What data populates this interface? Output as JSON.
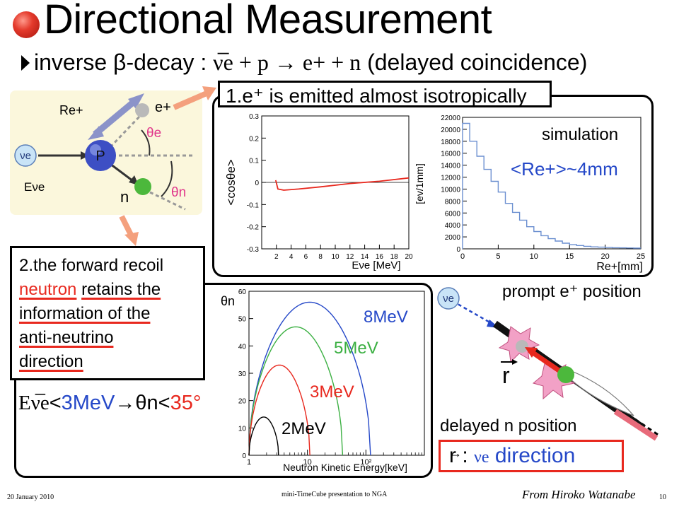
{
  "slide": {
    "title": "Directional Measurement",
    "subtitle_prefix": "inverse β-decay :",
    "reaction": "ν̅e + p → e+ + n",
    "subtitle_suffix": "(delayed coincidence)",
    "ball_color": "#d93a2b"
  },
  "diagram": {
    "labels": {
      "r": "Re+",
      "p": "P",
      "e": "e+",
      "theta_e": "θe",
      "theta_n": "θn",
      "n": "n",
      "nu": "νe",
      "energy": "Eνe"
    },
    "colors": {
      "bg": "#fbf7dc",
      "proton": "#3d4fc4",
      "electron": "#b9b9b9",
      "neutron": "#4cb83c",
      "pink": "#e0358a"
    }
  },
  "box1": {
    "label": "1.e⁺ is emitted almost isotropically"
  },
  "box2": {
    "line1": "2.the forward recoil",
    "line2_red": "neutron",
    "line2_rest": "retains the",
    "line3": "information of the",
    "line4": "anti-neutrino",
    "line5": "direction"
  },
  "condition": {
    "energy": "Eν̅e",
    "lt1": "<",
    "val1": "3MeV",
    "arrow": "→",
    "theta": "θn",
    "lt2": "<",
    "val2": "35°"
  },
  "plot_cos": {
    "ylabel": "<cosθe>",
    "xlabel": "Eνe [MeV]",
    "yticks": [
      "0.3",
      "0.2",
      "0.1",
      "0",
      "-0.1",
      "-0.2",
      "-0.3"
    ],
    "xticks": [
      "2",
      "4",
      "6",
      "8",
      "10",
      "12",
      "14",
      "16",
      "18",
      "20"
    ]
  },
  "plot_hist": {
    "ylabel": "[ev/1mm]",
    "xlabel": "Re+[mm]",
    "annotation": "simulation",
    "mean": "<Re+>~4mm",
    "yticks": [
      "22000",
      "20000",
      "18000",
      "16000",
      "14000",
      "12000",
      "10000",
      "8000",
      "6000",
      "4000",
      "2000",
      "0"
    ],
    "xticks": [
      "0",
      "5",
      "10",
      "15",
      "20",
      "25"
    ]
  },
  "plot_theta": {
    "ylabel": "θn",
    "xlabel": "Neutron Kinetic Energy[keV]",
    "yticks": [
      "60",
      "50",
      "40",
      "30",
      "20",
      "10",
      "0"
    ],
    "xticks": [
      "1",
      "10",
      "10²"
    ],
    "curve_labels": [
      "8MeV",
      "5MeV",
      "3MeV",
      "2MeV"
    ],
    "curve_colors": [
      "#2548c8",
      "#3cb043",
      "#e8281e",
      "#000000"
    ]
  },
  "chart_data": [
    {
      "type": "line",
      "ylabel": "<cosθe>",
      "xlabel": "Eνe [MeV]",
      "xlim": [
        0,
        20
      ],
      "ylim": [
        -0.3,
        0.3
      ],
      "series": [
        {
          "x": [
            1.9,
            2.2,
            3,
            5,
            8,
            12,
            16,
            20
          ],
          "y": [
            0.01,
            -0.03,
            -0.035,
            -0.03,
            -0.02,
            -0.005,
            0.005,
            0.02
          ]
        }
      ]
    },
    {
      "type": "bar",
      "ylabel": "[ev/1mm]",
      "xlabel": "Re+[mm]",
      "xlim": [
        0,
        25
      ],
      "ylim": [
        0,
        22000
      ],
      "categories": [
        0,
        1,
        2,
        3,
        4,
        5,
        6,
        7,
        8,
        9,
        10,
        11,
        12,
        13,
        14,
        15,
        16,
        17,
        18,
        19,
        20,
        21,
        22,
        23,
        24
      ],
      "values": [
        21000,
        18000,
        15500,
        13300,
        11300,
        9500,
        7600,
        6100,
        4800,
        3700,
        2900,
        2200,
        1700,
        1300,
        950,
        700,
        550,
        420,
        330,
        280,
        230,
        190,
        160,
        140,
        120
      ]
    },
    {
      "type": "line",
      "ylabel": "θn",
      "xlabel": "Neutron Kinetic Energy[keV]",
      "ylim": [
        0,
        60
      ],
      "series": [
        {
          "name": "8MeV",
          "peak": 56,
          "emax": 120
        },
        {
          "name": "5MeV",
          "peak": 47,
          "emax": 40
        },
        {
          "name": "3MeV",
          "peak": 33,
          "emax": 11
        },
        {
          "name": "2MeV",
          "peak": 14,
          "emax": 3.2
        }
      ]
    }
  ],
  "event": {
    "nu": "νe",
    "prompt": "prompt e⁺ position",
    "r": "r",
    "delayed": "delayed n position",
    "dir_r": "r",
    "dir_colon": ":",
    "dir_nu": "νe",
    "dir_word": "direction"
  },
  "footer": {
    "date": "20 January 2010",
    "center": "mini-TimeCube presentation to NGA",
    "credit": "From Hiroko Watanabe",
    "page": "10"
  }
}
